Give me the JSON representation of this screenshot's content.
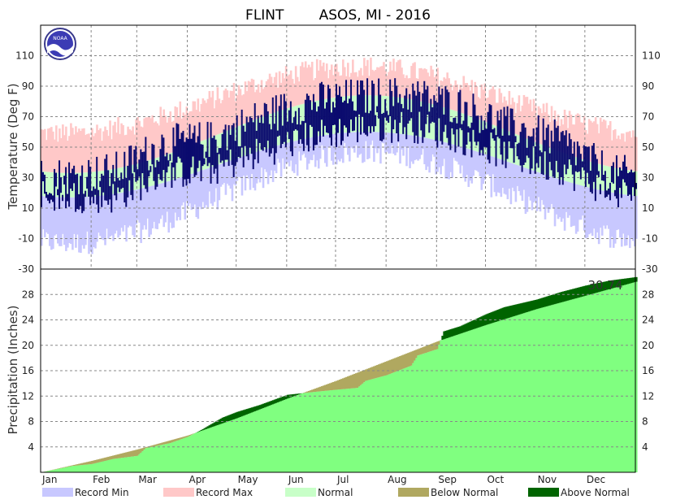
{
  "title": "FLINT        ASOS, MI - 2016",
  "colors": {
    "record_min": "#c8c8ff",
    "record_max": "#ffc8c8",
    "normal": "#c8ffc8",
    "observed": "#0a0a6e",
    "precip_fill": "#80ff80",
    "below_normal": "#b0a860",
    "above_normal": "#006400"
  },
  "logo": {
    "icon": "noaa-logo-icon",
    "text": "NOAA"
  },
  "chart_data": [
    {
      "type": "area",
      "panel": "temperature",
      "ylabel": "Temperature (Deg F)",
      "ylim": [
        -30,
        130
      ],
      "yticks": [
        -30,
        -10,
        10,
        30,
        50,
        70,
        90,
        110
      ],
      "grid": true,
      "months": [
        "Jan",
        "Feb",
        "Mar",
        "Apr",
        "May",
        "Jun",
        "Jul",
        "Aug",
        "Sep",
        "Oct",
        "Nov",
        "Dec"
      ],
      "month_start_day": [
        1,
        32,
        60,
        91,
        121,
        152,
        182,
        213,
        244,
        274,
        305,
        335
      ],
      "days": 366,
      "normal_curves": {
        "normal_high": {
          "mean": 58.5,
          "amp": 25.5,
          "peak_day": 201
        },
        "normal_low": {
          "mean": 38.5,
          "amp": 21.5,
          "peak_day": 201
        },
        "record_high": {
          "mean": 81,
          "amp": 22,
          "peak_day": 196
        },
        "record_low": {
          "mean": 17,
          "amp": 30,
          "peak_day": 201
        }
      },
      "observed_monthly": [
        {
          "month": "Jan",
          "high": 31,
          "low": 18
        },
        {
          "month": "Feb",
          "high": 34,
          "low": 17
        },
        {
          "month": "Mar",
          "high": 52,
          "low": 33
        },
        {
          "month": "Apr",
          "high": 55,
          "low": 35
        },
        {
          "month": "May",
          "high": 70,
          "low": 47
        },
        {
          "month": "Jun",
          "high": 80,
          "low": 57
        },
        {
          "month": "Jul",
          "high": 83,
          "low": 63
        },
        {
          "month": "Aug",
          "high": 84,
          "low": 64
        },
        {
          "month": "Sep",
          "high": 77,
          "low": 56
        },
        {
          "month": "Oct",
          "high": 63,
          "low": 44
        },
        {
          "month": "Nov",
          "high": 54,
          "low": 36
        },
        {
          "month": "Dec",
          "high": 32,
          "low": 20
        }
      ]
    },
    {
      "type": "area",
      "panel": "precipitation",
      "ylabel": "Precipitation (Inches)",
      "ylim": [
        0,
        32
      ],
      "yticks": [
        4,
        8,
        12,
        16,
        20,
        24,
        28
      ],
      "grid": true,
      "annual_total_label": "30.74",
      "observed_cumulative": [
        {
          "day": 1,
          "value": 0
        },
        {
          "day": 20,
          "value": 1.0
        },
        {
          "day": 32,
          "value": 1.3
        },
        {
          "day": 45,
          "value": 2.1
        },
        {
          "day": 60,
          "value": 2.6
        },
        {
          "day": 65,
          "value": 3.8
        },
        {
          "day": 80,
          "value": 4.6
        },
        {
          "day": 91,
          "value": 5.6
        },
        {
          "day": 100,
          "value": 6.8
        },
        {
          "day": 112,
          "value": 8.6
        },
        {
          "day": 121,
          "value": 9.5
        },
        {
          "day": 135,
          "value": 10.6
        },
        {
          "day": 152,
          "value": 12.2
        },
        {
          "day": 170,
          "value": 12.7
        },
        {
          "day": 182,
          "value": 13.0
        },
        {
          "day": 195,
          "value": 13.3
        },
        {
          "day": 200,
          "value": 14.4
        },
        {
          "day": 213,
          "value": 15.3
        },
        {
          "day": 228,
          "value": 16.8
        },
        {
          "day": 232,
          "value": 18.4
        },
        {
          "day": 244,
          "value": 19.4
        },
        {
          "day": 248,
          "value": 22.2
        },
        {
          "day": 258,
          "value": 23.0
        },
        {
          "day": 274,
          "value": 24.9
        },
        {
          "day": 285,
          "value": 26.0
        },
        {
          "day": 305,
          "value": 27.2
        },
        {
          "day": 320,
          "value": 28.4
        },
        {
          "day": 335,
          "value": 29.4
        },
        {
          "day": 350,
          "value": 30.2
        },
        {
          "day": 366,
          "value": 30.74
        }
      ],
      "normal_cumulative": [
        {
          "day": 1,
          "value": 0
        },
        {
          "day": 32,
          "value": 1.8
        },
        {
          "day": 60,
          "value": 3.6
        },
        {
          "day": 91,
          "value": 5.8
        },
        {
          "day": 121,
          "value": 8.5
        },
        {
          "day": 152,
          "value": 11.6
        },
        {
          "day": 182,
          "value": 14.4
        },
        {
          "day": 213,
          "value": 17.5
        },
        {
          "day": 244,
          "value": 20.6
        },
        {
          "day": 274,
          "value": 23.2
        },
        {
          "day": 305,
          "value": 25.7
        },
        {
          "day": 335,
          "value": 27.8
        },
        {
          "day": 366,
          "value": 30.0
        }
      ]
    }
  ],
  "legend": [
    {
      "label": "Record Min",
      "color": "#c8c8ff"
    },
    {
      "label": "Record Max",
      "color": "#ffc8c8"
    },
    {
      "label": "Normal",
      "color": "#c8ffc8"
    },
    {
      "label": "Below Normal",
      "color": "#b0a860"
    },
    {
      "label": "Above Normal",
      "color": "#006400"
    }
  ]
}
